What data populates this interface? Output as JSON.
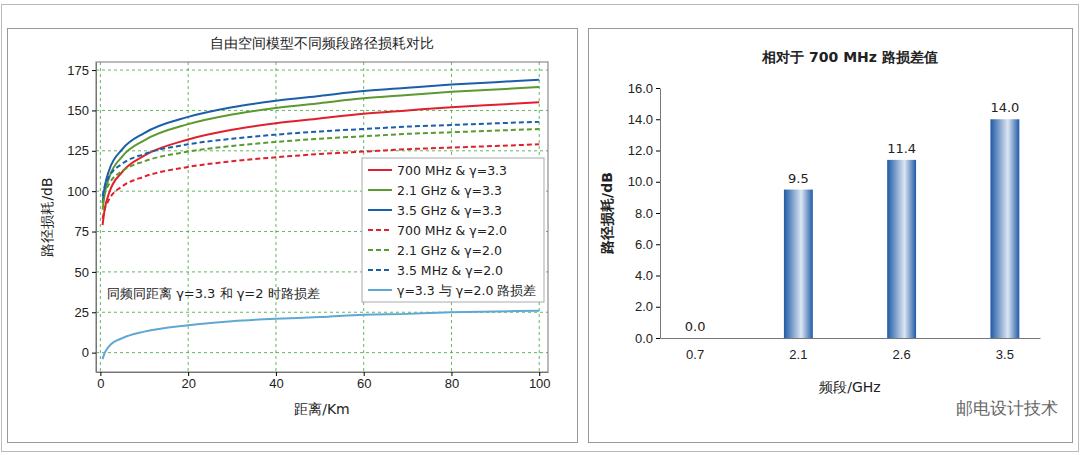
{
  "chart_data": [
    {
      "type": "line",
      "title": "自由空间模型不同频段路径损耗对比",
      "x_label": "距离/Km",
      "y_label": "路径损耗/dB",
      "annotation": "同频同距离 γ=3.3 和 γ=2 时路损差",
      "x": [
        0.5,
        1,
        2,
        5,
        10,
        20,
        30,
        40,
        50,
        60,
        70,
        80,
        90,
        100
      ],
      "series": [
        {
          "name": "700 MHz & γ=3.3",
          "color": "#e0202e",
          "line_style": "solid",
          "values": [
            79,
            89,
            99,
            112,
            122,
            132,
            138,
            142,
            145,
            148,
            150,
            152,
            153.5,
            155
          ]
        },
        {
          "name": "2.1 GHz & γ=3.3",
          "color": "#5a9a2e",
          "line_style": "solid",
          "values": [
            88.5,
            98.5,
            108.5,
            121.5,
            131.5,
            141.5,
            147.5,
            151.5,
            154.5,
            157.5,
            159.5,
            161.5,
            163,
            164.5
          ]
        },
        {
          "name": "3.5 GHz & γ=3.3",
          "color": "#1a5fa8",
          "line_style": "solid",
          "values": [
            93,
            103,
            113,
            126,
            136,
            146,
            152,
            156,
            159,
            162,
            164,
            166,
            167.5,
            169
          ]
        },
        {
          "name": "700 MHz & γ=2.0",
          "color": "#e0202e",
          "line_style": "dashed",
          "values": [
            83,
            89,
            95,
            103,
            109,
            115,
            118.5,
            121,
            123,
            124.5,
            126,
            127,
            128,
            129
          ]
        },
        {
          "name": "2.1 GHz & γ=2.0",
          "color": "#5a9a2e",
          "line_style": "dashed",
          "values": [
            92.5,
            98.5,
            104.5,
            112.5,
            118.5,
            124.5,
            128,
            130.5,
            132.5,
            134,
            135.5,
            136.5,
            137.5,
            138.5
          ]
        },
        {
          "name": "3.5 MHz & γ=2.0",
          "color": "#1a5fa8",
          "line_style": "dashed",
          "values": [
            97,
            103,
            109,
            117,
            123,
            129,
            132.5,
            135,
            137,
            138.5,
            140,
            141,
            142,
            143
          ]
        },
        {
          "name": "γ=3.3 与 γ=2.0 路损差",
          "color": "#5fa8d3",
          "line_style": "solid",
          "values": [
            -4,
            0,
            4,
            9,
            13,
            17,
            19.5,
            21,
            22,
            23.5,
            24,
            25,
            25.5,
            26
          ]
        }
      ],
      "xlim": [
        -1,
        102
      ],
      "ylim": [
        -12,
        180
      ],
      "xticks": [
        0,
        20,
        40,
        60,
        80,
        100
      ],
      "yticks": [
        0,
        25,
        50,
        75,
        100,
        125,
        150,
        175
      ],
      "grid": true,
      "legend": "right"
    },
    {
      "type": "bar",
      "title": "相对于 700 MHz 路损差值",
      "x_label": "频段/GHz",
      "y_label": "路径损耗/dB",
      "categories": [
        "0.7",
        "2.1",
        "2.6",
        "3.5"
      ],
      "values": [
        0,
        9.5,
        11.4,
        14
      ],
      "value_labels": [
        "0.0",
        "9.5",
        "11.4",
        "14.0"
      ],
      "color": "#1f5aa6",
      "ylim": [
        0,
        16
      ],
      "yticks": [
        {
          "value": 0,
          "label": "0.0"
        },
        {
          "value": 2,
          "label": "2.0"
        },
        {
          "value": 4,
          "label": "4.0"
        },
        {
          "value": 6,
          "label": "6.0"
        },
        {
          "value": 8,
          "label": "8.0"
        },
        {
          "value": 10,
          "label": "10.0"
        },
        {
          "value": 12,
          "label": "12.0"
        },
        {
          "value": 14,
          "label": "14.0"
        },
        {
          "value": 16,
          "label": "16.0"
        }
      ],
      "data_labels": true,
      "grid": false
    }
  ],
  "watermark": "邮电设计技术"
}
